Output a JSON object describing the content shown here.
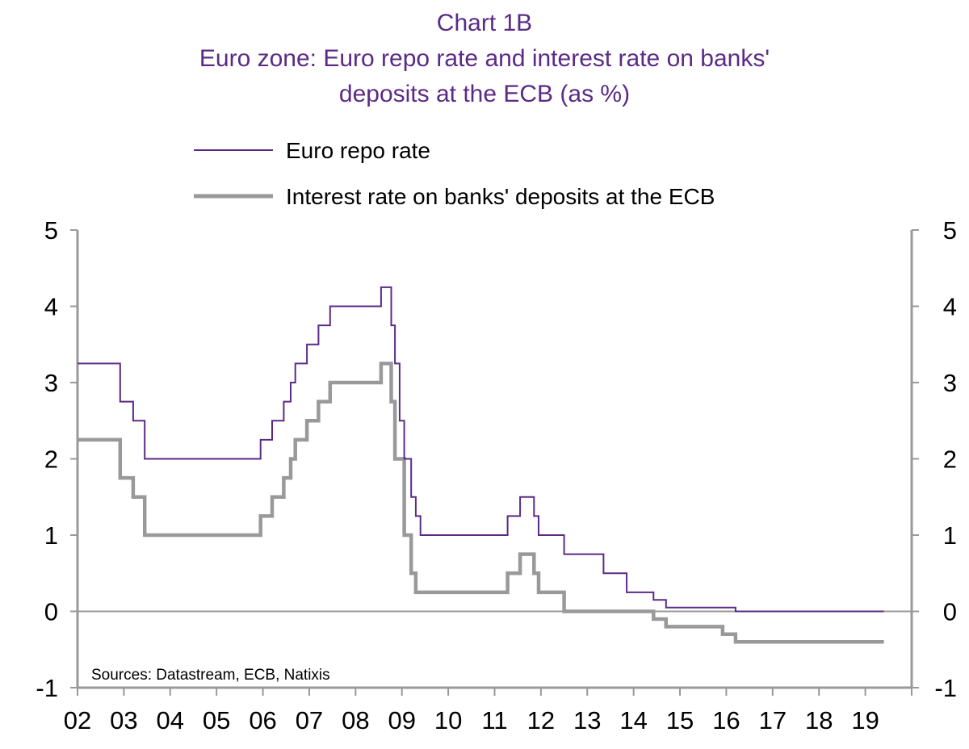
{
  "chart_data": {
    "type": "line",
    "title": "Chart 1B",
    "subtitle_lines": [
      "Euro zone: Euro repo rate and interest rate on banks'",
      "deposits at the ECB (as %)"
    ],
    "xlabel": "",
    "ylabel": "",
    "x_ticks": [
      "02",
      "03",
      "04",
      "05",
      "06",
      "07",
      "08",
      "09",
      "10",
      "11",
      "12",
      "13",
      "14",
      "15",
      "16",
      "17",
      "18",
      "19"
    ],
    "xlim": [
      2002,
      2020
    ],
    "ylim": [
      -1,
      5
    ],
    "y_ticks": [
      "5",
      "4",
      "3",
      "2",
      "1",
      "0",
      "-1"
    ],
    "grid": false,
    "legend_position": "top",
    "source": "Sources: Datastream, ECB, Natixis",
    "colors": {
      "title": "#5b2a86",
      "repo": "#5b2a86",
      "deposit": "#999999",
      "axis": "#999999"
    },
    "series": [
      {
        "name": "Euro repo rate",
        "style": "step",
        "points": [
          [
            2002.0,
            3.25
          ],
          [
            2002.92,
            2.75
          ],
          [
            2003.2,
            2.5
          ],
          [
            2003.45,
            2.0
          ],
          [
            2005.95,
            2.25
          ],
          [
            2006.2,
            2.5
          ],
          [
            2006.45,
            2.75
          ],
          [
            2006.6,
            3.0
          ],
          [
            2006.7,
            3.25
          ],
          [
            2006.95,
            3.5
          ],
          [
            2007.2,
            3.75
          ],
          [
            2007.45,
            4.0
          ],
          [
            2008.55,
            4.25
          ],
          [
            2008.77,
            3.75
          ],
          [
            2008.85,
            3.25
          ],
          [
            2008.95,
            2.5
          ],
          [
            2009.05,
            2.0
          ],
          [
            2009.2,
            1.5
          ],
          [
            2009.3,
            1.25
          ],
          [
            2009.4,
            1.0
          ],
          [
            2011.28,
            1.25
          ],
          [
            2011.55,
            1.5
          ],
          [
            2011.85,
            1.25
          ],
          [
            2011.95,
            1.0
          ],
          [
            2012.5,
            0.75
          ],
          [
            2013.35,
            0.5
          ],
          [
            2013.85,
            0.25
          ],
          [
            2014.43,
            0.15
          ],
          [
            2014.7,
            0.05
          ],
          [
            2016.2,
            0.0
          ],
          [
            2019.4,
            0.0
          ]
        ]
      },
      {
        "name": "Interest rate on banks' deposits at the ECB",
        "style": "step",
        "points": [
          [
            2002.0,
            2.25
          ],
          [
            2002.92,
            1.75
          ],
          [
            2003.2,
            1.5
          ],
          [
            2003.45,
            1.0
          ],
          [
            2005.95,
            1.25
          ],
          [
            2006.2,
            1.5
          ],
          [
            2006.45,
            1.75
          ],
          [
            2006.6,
            2.0
          ],
          [
            2006.7,
            2.25
          ],
          [
            2006.95,
            2.5
          ],
          [
            2007.2,
            2.75
          ],
          [
            2007.45,
            3.0
          ],
          [
            2008.55,
            3.25
          ],
          [
            2008.77,
            2.75
          ],
          [
            2008.85,
            2.0
          ],
          [
            2008.95,
            2.0
          ],
          [
            2009.05,
            1.0
          ],
          [
            2009.2,
            0.5
          ],
          [
            2009.3,
            0.25
          ],
          [
            2011.28,
            0.5
          ],
          [
            2011.55,
            0.75
          ],
          [
            2011.85,
            0.5
          ],
          [
            2011.95,
            0.25
          ],
          [
            2012.5,
            0.0
          ],
          [
            2014.43,
            -0.1
          ],
          [
            2014.7,
            -0.2
          ],
          [
            2015.92,
            -0.3
          ],
          [
            2016.2,
            -0.4
          ],
          [
            2019.4,
            -0.4
          ]
        ]
      }
    ]
  }
}
